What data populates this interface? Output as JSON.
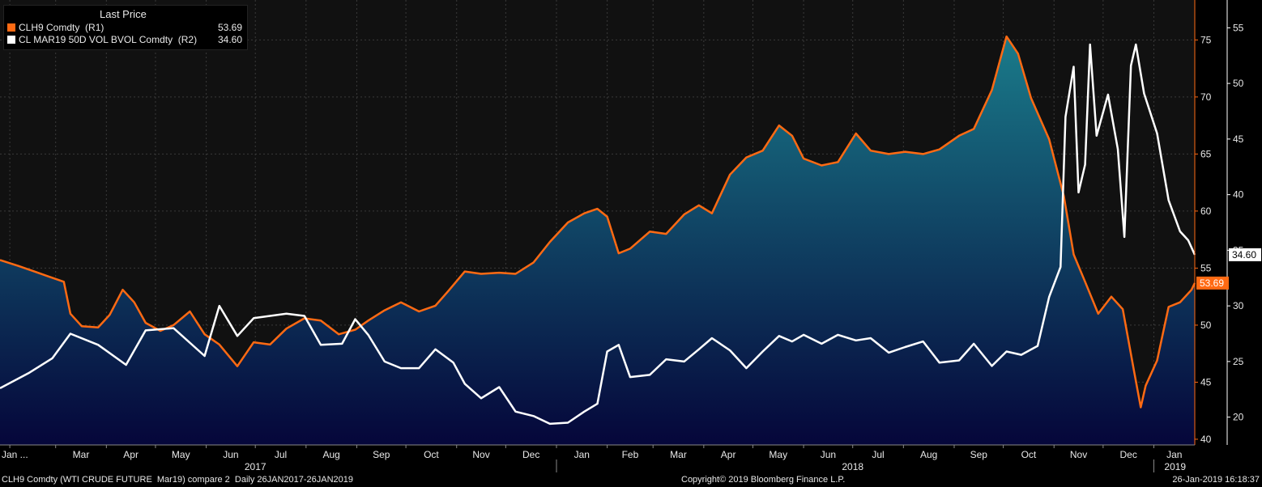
{
  "legend": {
    "header": "Last Price",
    "series1_label": "CLH9 Comdty  (R1)",
    "series1_value": "53.69",
    "series2_label": "CL MAR19 50D VOL BVOL Comdty  (R2)",
    "series2_value": "34.60"
  },
  "footer": {
    "left": "CLH9 Comdty (WTI CRUDE FUTURE  Mar19) compare 2  Daily 26JAN2017-26JAN2019",
    "center": "Copyright© 2019 Bloomberg Finance L.P.",
    "right": "26-Jan-2019 16:18:37"
  },
  "colors": {
    "price_line": "#ff6a13",
    "vol_line": "#ffffff",
    "area_top": "#1a7b8a",
    "area_bottom": "#05063a",
    "background": "#111111"
  },
  "chart_data": {
    "type": "line",
    "x_axis": {
      "month_labels": [
        "Jan ...",
        "Mar",
        "Apr",
        "May",
        "Jun",
        "Jul",
        "Aug",
        "Sep",
        "Oct",
        "Nov",
        "Dec",
        "Jan",
        "Feb",
        "Mar",
        "Apr",
        "May",
        "Jun",
        "Jul",
        "Aug",
        "Sep",
        "Oct",
        "Nov",
        "Dec",
        "Jan"
      ],
      "year_labels": [
        "2017",
        "2018",
        "2019"
      ],
      "range": [
        "2017-01-26",
        "2019-01-26"
      ]
    },
    "y_axis_r1": {
      "ticks": [
        40,
        45,
        50,
        55,
        60,
        65,
        70,
        75
      ],
      "ylim": [
        39.5,
        78.5
      ]
    },
    "y_axis_r2": {
      "ticks": [
        20,
        25,
        30,
        35,
        40,
        45,
        50,
        55
      ],
      "ylim": [
        17.5,
        57.5
      ]
    },
    "series": [
      {
        "name": "CLH9 Comdty  (R1)",
        "axis": "R1",
        "style": "line with gradient area fill",
        "last_value": 53.69,
        "points": [
          [
            "2017-01-26",
            55.7
          ],
          [
            "2017-02-06",
            55.2
          ],
          [
            "2017-02-16",
            54.7
          ],
          [
            "2017-02-24",
            54.3
          ],
          [
            "2017-03-06",
            53.8
          ],
          [
            "2017-03-10",
            51.0
          ],
          [
            "2017-03-17",
            49.9
          ],
          [
            "2017-03-27",
            49.8
          ],
          [
            "2017-04-03",
            50.9
          ],
          [
            "2017-04-11",
            53.1
          ],
          [
            "2017-04-18",
            52.0
          ],
          [
            "2017-04-25",
            50.2
          ],
          [
            "2017-05-04",
            49.5
          ],
          [
            "2017-05-12",
            50.0
          ],
          [
            "2017-05-22",
            51.2
          ],
          [
            "2017-05-31",
            49.2
          ],
          [
            "2017-06-09",
            48.3
          ],
          [
            "2017-06-20",
            46.4
          ],
          [
            "2017-06-30",
            48.5
          ],
          [
            "2017-07-10",
            48.3
          ],
          [
            "2017-07-20",
            49.7
          ],
          [
            "2017-07-31",
            50.6
          ],
          [
            "2017-08-10",
            50.4
          ],
          [
            "2017-08-21",
            49.2
          ],
          [
            "2017-08-31",
            49.6
          ],
          [
            "2017-09-08",
            50.4
          ],
          [
            "2017-09-18",
            51.3
          ],
          [
            "2017-09-28",
            52.0
          ],
          [
            "2017-10-09",
            51.2
          ],
          [
            "2017-10-19",
            51.7
          ],
          [
            "2017-10-27",
            53.0
          ],
          [
            "2017-11-06",
            54.7
          ],
          [
            "2017-11-16",
            54.5
          ],
          [
            "2017-11-27",
            54.6
          ],
          [
            "2017-12-07",
            54.5
          ],
          [
            "2017-12-18",
            55.5
          ],
          [
            "2017-12-28",
            57.3
          ],
          [
            "2018-01-08",
            59.0
          ],
          [
            "2018-01-18",
            59.8
          ],
          [
            "2018-01-26",
            60.2
          ],
          [
            "2018-02-01",
            59.5
          ],
          [
            "2018-02-08",
            56.3
          ],
          [
            "2018-02-15",
            56.7
          ],
          [
            "2018-02-27",
            58.2
          ],
          [
            "2018-03-09",
            58.0
          ],
          [
            "2018-03-20",
            59.7
          ],
          [
            "2018-03-29",
            60.5
          ],
          [
            "2018-04-06",
            59.8
          ],
          [
            "2018-04-17",
            63.2
          ],
          [
            "2018-04-27",
            64.7
          ],
          [
            "2018-05-07",
            65.3
          ],
          [
            "2018-05-17",
            67.5
          ],
          [
            "2018-05-25",
            66.6
          ],
          [
            "2018-06-01",
            64.6
          ],
          [
            "2018-06-12",
            64.0
          ],
          [
            "2018-06-22",
            64.3
          ],
          [
            "2018-07-03",
            66.8
          ],
          [
            "2018-07-12",
            65.3
          ],
          [
            "2018-07-23",
            65.0
          ],
          [
            "2018-08-02",
            65.2
          ],
          [
            "2018-08-13",
            65.0
          ],
          [
            "2018-08-23",
            65.4
          ],
          [
            "2018-09-04",
            66.6
          ],
          [
            "2018-09-13",
            67.2
          ],
          [
            "2018-09-24",
            70.6
          ],
          [
            "2018-10-03",
            75.3
          ],
          [
            "2018-10-10",
            73.8
          ],
          [
            "2018-10-18",
            69.9
          ],
          [
            "2018-10-29",
            66.3
          ],
          [
            "2018-11-07",
            61.3
          ],
          [
            "2018-11-13",
            56.2
          ],
          [
            "2018-11-20",
            53.8
          ],
          [
            "2018-11-28",
            51.0
          ],
          [
            "2018-12-06",
            52.5
          ],
          [
            "2018-12-13",
            51.4
          ],
          [
            "2018-12-20",
            45.9
          ],
          [
            "2018-12-24",
            42.8
          ],
          [
            "2018-12-27",
            44.7
          ],
          [
            "2019-01-03",
            46.9
          ],
          [
            "2019-01-10",
            51.6
          ],
          [
            "2019-01-17",
            52.0
          ],
          [
            "2019-01-24",
            53.1
          ],
          [
            "2019-01-26",
            53.69
          ]
        ]
      },
      {
        "name": "CL MAR19 50D VOL BVOL Comdty  (R2)",
        "axis": "R2",
        "style": "line",
        "last_value": 34.6,
        "points": [
          [
            "2017-01-26",
            22.6
          ],
          [
            "2017-02-13",
            24.0
          ],
          [
            "2017-02-27",
            25.3
          ],
          [
            "2017-03-10",
            27.5
          ],
          [
            "2017-03-27",
            26.5
          ],
          [
            "2017-04-13",
            24.7
          ],
          [
            "2017-04-25",
            27.8
          ],
          [
            "2017-05-12",
            28.0
          ],
          [
            "2017-05-31",
            25.5
          ],
          [
            "2017-06-09",
            30.0
          ],
          [
            "2017-06-20",
            27.3
          ],
          [
            "2017-06-30",
            28.9
          ],
          [
            "2017-07-10",
            29.1
          ],
          [
            "2017-07-20",
            29.3
          ],
          [
            "2017-07-31",
            29.1
          ],
          [
            "2017-08-10",
            26.5
          ],
          [
            "2017-08-23",
            26.6
          ],
          [
            "2017-08-31",
            28.8
          ],
          [
            "2017-09-08",
            27.4
          ],
          [
            "2017-09-18",
            25.0
          ],
          [
            "2017-09-28",
            24.4
          ],
          [
            "2017-10-09",
            24.4
          ],
          [
            "2017-10-19",
            26.1
          ],
          [
            "2017-10-30",
            24.9
          ],
          [
            "2017-11-06",
            23.0
          ],
          [
            "2017-11-16",
            21.7
          ],
          [
            "2017-11-27",
            22.7
          ],
          [
            "2017-12-07",
            20.5
          ],
          [
            "2017-12-18",
            20.1
          ],
          [
            "2017-12-28",
            19.4
          ],
          [
            "2018-01-08",
            19.5
          ],
          [
            "2018-01-18",
            20.5
          ],
          [
            "2018-01-26",
            21.2
          ],
          [
            "2018-02-01",
            25.9
          ],
          [
            "2018-02-08",
            26.5
          ],
          [
            "2018-02-15",
            23.6
          ],
          [
            "2018-02-27",
            23.8
          ],
          [
            "2018-03-09",
            25.2
          ],
          [
            "2018-03-20",
            25.0
          ],
          [
            "2018-03-29",
            26.1
          ],
          [
            "2018-04-06",
            27.1
          ],
          [
            "2018-04-17",
            26.0
          ],
          [
            "2018-04-27",
            24.4
          ],
          [
            "2018-05-07",
            25.9
          ],
          [
            "2018-05-17",
            27.3
          ],
          [
            "2018-05-25",
            26.8
          ],
          [
            "2018-06-01",
            27.4
          ],
          [
            "2018-06-12",
            26.6
          ],
          [
            "2018-06-22",
            27.4
          ],
          [
            "2018-07-03",
            26.9
          ],
          [
            "2018-07-12",
            27.1
          ],
          [
            "2018-07-23",
            25.8
          ],
          [
            "2018-08-02",
            26.3
          ],
          [
            "2018-08-13",
            26.8
          ],
          [
            "2018-08-23",
            24.9
          ],
          [
            "2018-09-04",
            25.1
          ],
          [
            "2018-09-13",
            26.6
          ],
          [
            "2018-09-24",
            24.6
          ],
          [
            "2018-10-03",
            25.9
          ],
          [
            "2018-10-12",
            25.6
          ],
          [
            "2018-10-22",
            26.4
          ],
          [
            "2018-10-29",
            30.8
          ],
          [
            "2018-11-05",
            33.5
          ],
          [
            "2018-11-08",
            47.0
          ],
          [
            "2018-11-13",
            51.5
          ],
          [
            "2018-11-16",
            40.2
          ],
          [
            "2018-11-20",
            42.7
          ],
          [
            "2018-11-23",
            53.5
          ],
          [
            "2018-11-27",
            45.3
          ],
          [
            "2018-12-04",
            49.0
          ],
          [
            "2018-12-10",
            44.1
          ],
          [
            "2018-12-14",
            36.2
          ],
          [
            "2018-12-18",
            51.6
          ],
          [
            "2018-12-21",
            53.5
          ],
          [
            "2018-12-26",
            49.1
          ],
          [
            "2019-01-03",
            45.5
          ],
          [
            "2019-01-10",
            39.5
          ],
          [
            "2019-01-17",
            36.7
          ],
          [
            "2019-01-22",
            35.9
          ],
          [
            "2019-01-26",
            34.6
          ]
        ]
      }
    ]
  }
}
